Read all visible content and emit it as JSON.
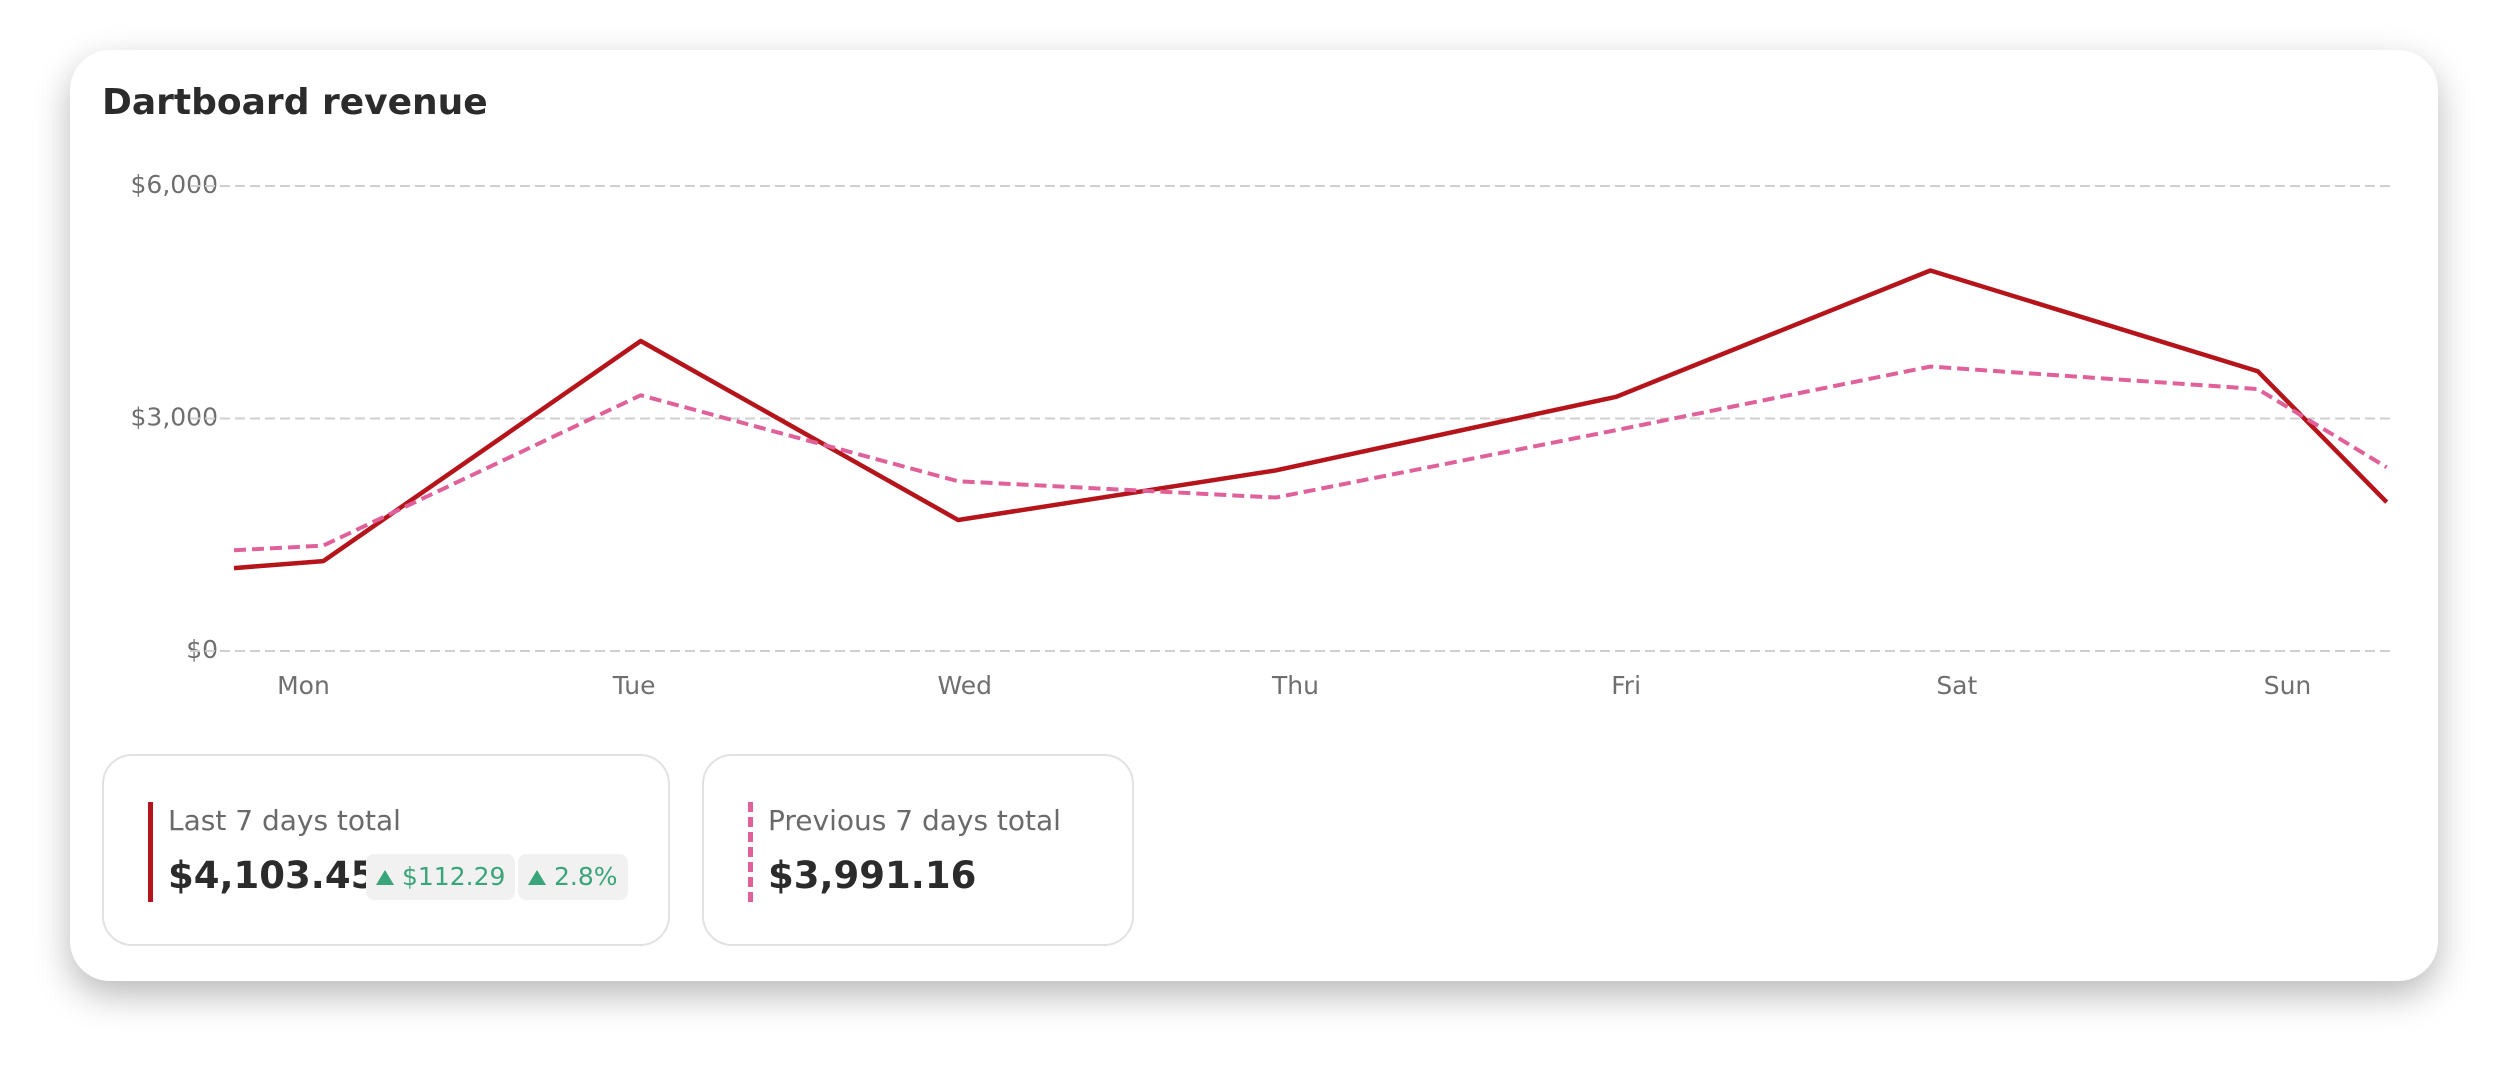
{
  "chart_data": {
    "type": "line",
    "title": "Dartboard revenue",
    "x": [
      -0.21,
      0.06,
      1.02,
      1.98,
      2.94,
      3.97,
      4.92,
      5.91,
      6.3
    ],
    "xlim": [
      -0.21,
      6.31
    ],
    "xticks": [
      {
        "value": 0,
        "label": "Mon"
      },
      {
        "value": 1,
        "label": "Tue"
      },
      {
        "value": 2,
        "label": "Wed"
      },
      {
        "value": 3,
        "label": "Thu"
      },
      {
        "value": 4,
        "label": "Fri"
      },
      {
        "value": 5,
        "label": "Sat"
      },
      {
        "value": 6,
        "label": "Sun"
      }
    ],
    "ylim": [
      0,
      6000
    ],
    "yticks": [
      {
        "value": 0,
        "label": "$0"
      },
      {
        "value": 3000,
        "label": "$3,000"
      },
      {
        "value": 6000,
        "label": "$6,000"
      }
    ],
    "grid": true,
    "series": [
      {
        "name": "Last 7 days total",
        "color": "#b5141a",
        "dash": false,
        "values": [
          1070,
          1160,
          4000,
          1690,
          2330,
          3280,
          4910,
          3610,
          1920
        ]
      },
      {
        "name": "Previous 7 days total",
        "color": "#e0609a",
        "dash": true,
        "values": [
          1300,
          1360,
          3300,
          2190,
          1980,
          2850,
          3670,
          3380,
          2370
        ]
      }
    ]
  },
  "summary": [
    {
      "total": "$4,103.45",
      "change": "$112.29",
      "change_pct": "2.8%"
    },
    {
      "total": "$3,991.16"
    }
  ]
}
